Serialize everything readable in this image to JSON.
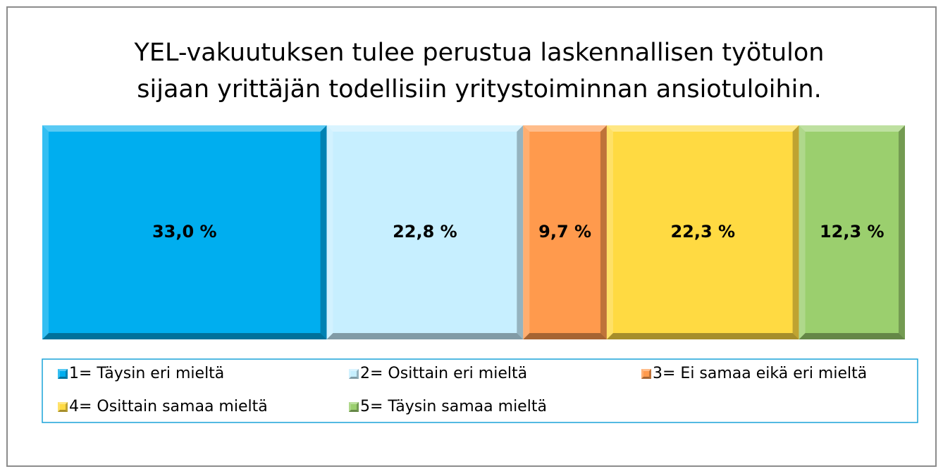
{
  "chart_data": {
    "type": "stacked_bar_100",
    "title": [
      "YEL-vakuutuksen tulee perustua laskennallisen työtulon",
      "sijaan yrittäjän todellisiin yritystoiminnan ansiotuloihin."
    ],
    "series": [
      {
        "name": "1= Täysin eri mieltä",
        "color": "#00aeef",
        "values": [
          33.0
        ],
        "value_labels": [
          "33,0 %"
        ]
      },
      {
        "name": "2= Osittain eri mieltä",
        "color": "#c7efff",
        "values": [
          22.8
        ],
        "value_labels": [
          "22,8 %"
        ]
      },
      {
        "name": "3= Ei samaa eikä eri mieltä",
        "color": "#ff9a4d",
        "values": [
          9.7
        ],
        "value_labels": [
          "9,7 %"
        ]
      },
      {
        "name": "4= Osittain samaa mieltä",
        "color": "#ffda42",
        "values": [
          22.3
        ],
        "value_labels": [
          "22,3 %"
        ]
      },
      {
        "name": "5= Täysin samaa mieltä",
        "color": "#9bcf6e",
        "values": [
          12.3
        ],
        "value_labels": [
          "12,3 %"
        ]
      }
    ],
    "legend": "bottom"
  }
}
